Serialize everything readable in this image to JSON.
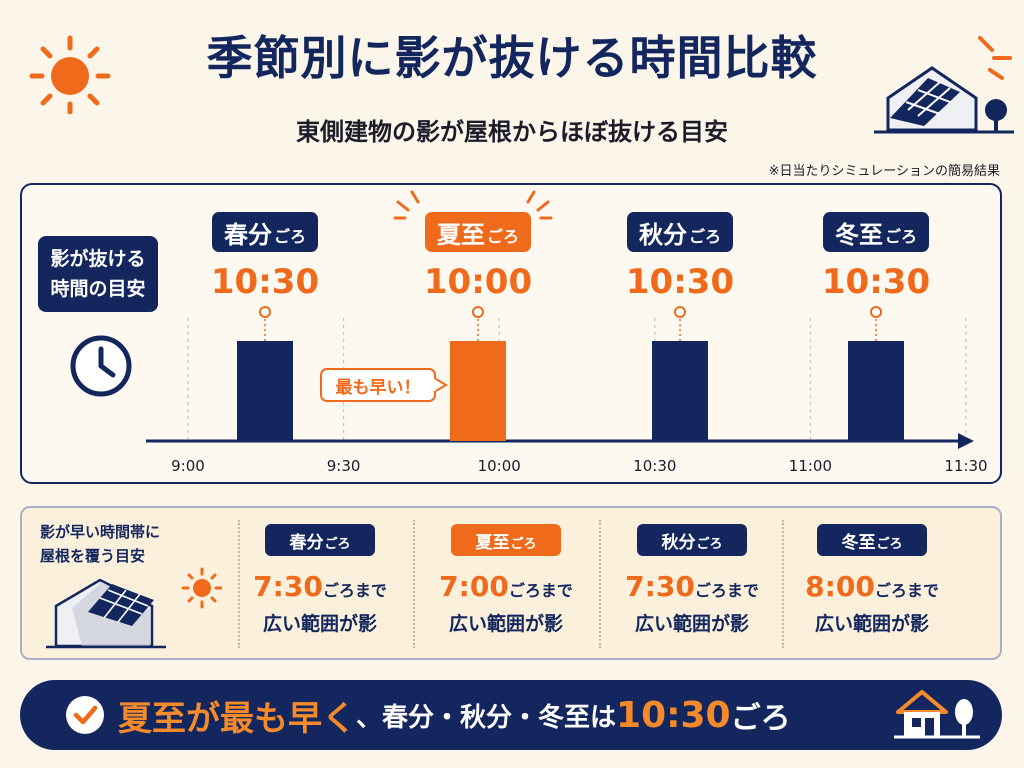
{
  "header": {
    "title": "季節別に影が抜ける時間比較",
    "subtitle": "東側建物の影が屋根からほぼ抜ける目安",
    "note": "※日当たりシミュレーションの簡易結果"
  },
  "legend": {
    "line1": "影が抜ける",
    "line2": "時間の目安"
  },
  "chart_data": {
    "type": "bar",
    "categories": [
      "春分",
      "夏至",
      "秋分",
      "冬至"
    ],
    "category_suffix": "ごろ",
    "values": [
      "10:30",
      "10:00",
      "10:30",
      "10:30"
    ],
    "value_labels": [
      "10:30",
      "10:00",
      "10:30",
      "10:30"
    ],
    "highlight_index": 1,
    "x_ticks": [
      "9:00",
      "9:30",
      "10:00",
      "10:30",
      "11:00",
      "11:30"
    ],
    "callout": "最も早い！",
    "colors": {
      "bar": "#13275e",
      "highlight": "#f06a1c"
    }
  },
  "lower": {
    "title_line1": "影が早い時間帯に",
    "title_line2": "屋根を覆う目安",
    "suffix": "ごろまで",
    "desc": "広い範囲が影",
    "items": [
      {
        "season": "春分",
        "goro": "ごろ",
        "time": "7:30"
      },
      {
        "season": "夏至",
        "goro": "ごろ",
        "time": "7:00"
      },
      {
        "season": "秋分",
        "goro": "ごろ",
        "time": "7:30"
      },
      {
        "season": "冬至",
        "goro": "ごろ",
        "time": "8:00"
      }
    ]
  },
  "banner": {
    "part1": "夏至が最も早く",
    "part2": "、春分・秋分・冬至は",
    "part3": "10:30",
    "part4": "ごろ"
  },
  "icons": [
    "sun-icon",
    "house-solar-icon",
    "tree-icon",
    "clock-icon",
    "check-icon",
    "house-icon"
  ],
  "colors": {
    "navy": "#13275e",
    "orange": "#f06a1c",
    "background": "#fbf5ea"
  }
}
